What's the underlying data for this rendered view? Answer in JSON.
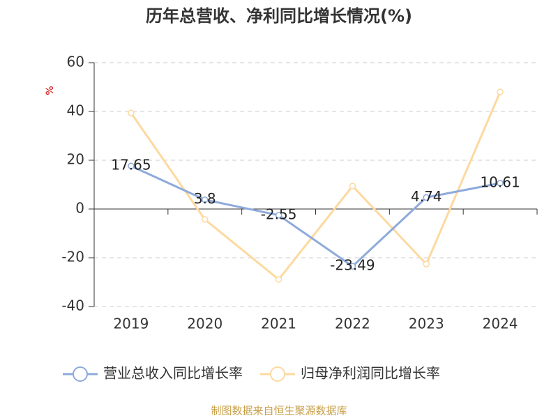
{
  "chart_data": {
    "type": "line",
    "title": "历年总营收、净利同比增长情况(%)",
    "y_label": "%",
    "categories": [
      "2019",
      "2020",
      "2021",
      "2022",
      "2023",
      "2024"
    ],
    "series": [
      {
        "name": "营业总收入同比增长率",
        "color": "#8eaadb",
        "values": [
          17.65,
          3.8,
          -2.55,
          -23.49,
          4.74,
          10.61
        ],
        "show_labels": true
      },
      {
        "name": "归母净利润同比增长率",
        "color": "#fdd9a0",
        "values": [
          39.4,
          -4.3,
          -28.9,
          9.4,
          -22.6,
          48.0
        ],
        "show_labels": false
      }
    ],
    "ylim": [
      -40,
      60
    ],
    "yticks": [
      -40,
      -20,
      0,
      20,
      40,
      60
    ],
    "grid": true,
    "legend": "bottom",
    "source": "制图数据来自恒生聚源数据库"
  }
}
